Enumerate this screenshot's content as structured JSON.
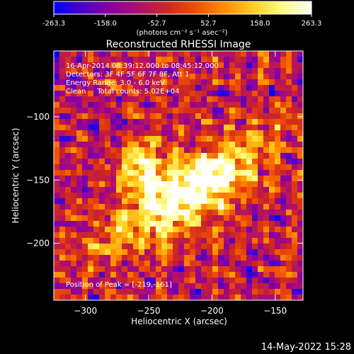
{
  "colorbar": {
    "ticks": [
      "-263.3",
      "-158.0",
      "-52.7",
      "52.7",
      "158.0",
      "263.3"
    ],
    "unit_label": "(photons cm⁻² s⁻¹ asec⁻²)",
    "range": [
      -263.3,
      263.3
    ]
  },
  "title": "Reconstructed RHESSI Image",
  "annotations": {
    "time_range": "16-Apr-2014 08:39:12.000 to 08:45:12.000",
    "detectors": "Detectors: 3F 4F 5F 6F 7F 8F, Att 1",
    "energy": "Energy Range: 3.0 - 6.0 keV",
    "clean": "Clean     Total counts: 5.02E+04",
    "peak": "Position of Peak = [-219,-161]"
  },
  "footer_date": "14-May-2022 15:28",
  "chart_data": {
    "type": "heatmap",
    "title": "Reconstructed RHESSI Image",
    "xlabel": "Heliocentric X (arcsec)",
    "ylabel": "Heliocentric Y (arcsec)",
    "xlim": [
      -325,
      -128
    ],
    "ylim": [
      -245,
      -48
    ],
    "x_ticks": [
      -300,
      -250,
      -200,
      -150
    ],
    "y_ticks": [
      -200,
      -150,
      -100
    ],
    "x_tick_labels": [
      "−300",
      "−250",
      "−200",
      "−150"
    ],
    "y_tick_labels": [
      "−200",
      "−150",
      "−100"
    ],
    "peak": [
      -219,
      -161
    ],
    "peak_value": 263.3,
    "colormap": [
      "#0000ff",
      "#4b00c8",
      "#8a00a0",
      "#b0106a",
      "#d02820",
      "#f05000",
      "#ff9000",
      "#ffd020",
      "#ffff80",
      "#ffffff"
    ]
  }
}
